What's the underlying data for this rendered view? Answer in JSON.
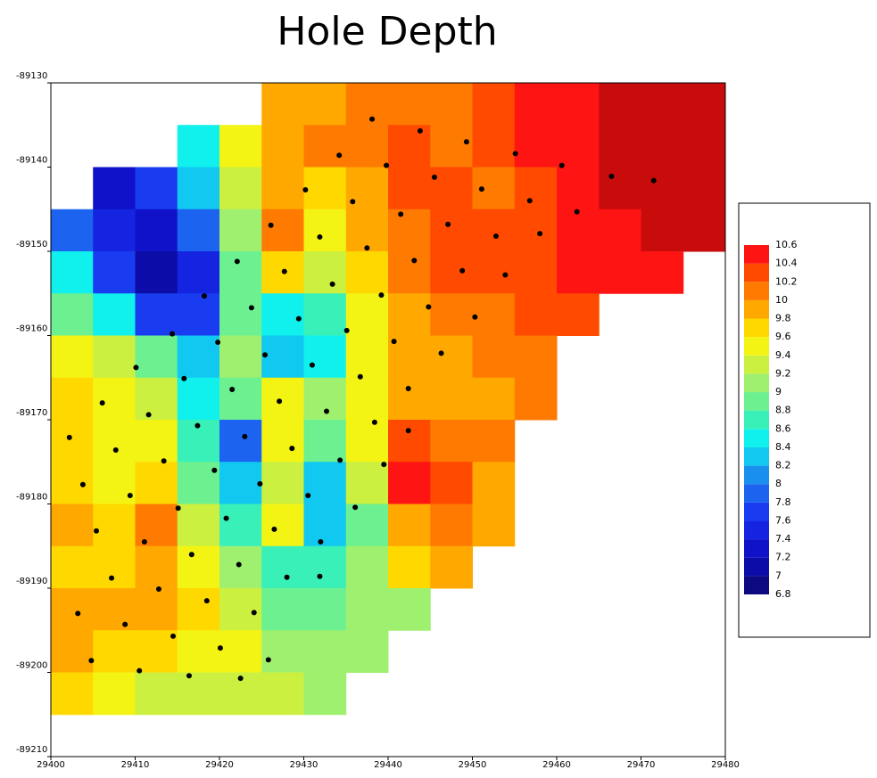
{
  "chart_data": {
    "type": "contour",
    "title": "Hole Depth",
    "xlim": [
      29400,
      29480
    ],
    "ylim": [
      -89210,
      -89130
    ],
    "xticks": [
      29400,
      29410,
      29420,
      29430,
      29440,
      29450,
      29460,
      29470,
      29480
    ],
    "yticks": [
      -89130,
      -89140,
      -89150,
      -89160,
      -89170,
      -89180,
      -89190,
      -89200,
      -89210
    ],
    "x": [
      29402.5,
      29407.5,
      29412.5,
      29417.5,
      29422.5,
      29427.5,
      29432.5,
      29437.5,
      29442.5,
      29447.5,
      29452.5,
      29457.5,
      29462.5,
      29467.5,
      29472.5,
      29477.5
    ],
    "y": [
      -89132.5,
      -89137.5,
      -89142.5,
      -89147.5,
      -89152.5,
      -89157.5,
      -89162.5,
      -89167.5,
      -89172.5,
      -89177.5,
      -89182.5,
      -89187.5,
      -89192.5,
      -89197.5,
      -89202.5
    ],
    "z": [
      [
        null,
        null,
        null,
        null,
        null,
        9.8,
        9.9,
        10,
        10,
        10.1,
        10.2,
        10.4,
        10.4,
        10.6,
        10.6,
        10.6
      ],
      [
        null,
        null,
        null,
        8.4,
        9.4,
        9.8,
        10,
        10,
        10.2,
        10.1,
        10.2,
        10.4,
        10.5,
        10.6,
        10.6,
        10.6
      ],
      [
        null,
        7.2,
        7.6,
        8.2,
        9.2,
        9.8,
        9.6,
        9.9,
        10.2,
        10.2,
        10.1,
        10.3,
        10.4,
        10.6,
        10.6,
        10.6
      ],
      [
        7.8,
        7.4,
        7.2,
        7.8,
        9,
        10,
        9.4,
        9.8,
        10,
        10.2,
        10.2,
        10.3,
        10.4,
        10.5,
        10.6,
        10.6
      ],
      [
        8.4,
        7.6,
        7,
        7.4,
        8.8,
        9.6,
        9.2,
        9.6,
        10,
        10.3,
        10.2,
        10.2,
        10.4,
        10.4,
        10.4,
        null
      ],
      [
        8.8,
        8.4,
        7.6,
        7.6,
        8.8,
        8.4,
        8.6,
        9.4,
        9.9,
        10,
        10.1,
        10.2,
        10.3,
        null,
        null,
        null
      ],
      [
        9.4,
        9.2,
        8.8,
        8.2,
        9,
        8.2,
        8.4,
        9.4,
        9.8,
        9.9,
        10,
        10.1,
        null,
        null,
        null,
        null
      ],
      [
        9.6,
        9.4,
        9.2,
        8.4,
        8.8,
        9.4,
        9,
        9.4,
        9.8,
        9.9,
        9.9,
        10,
        null,
        null,
        null,
        null
      ],
      [
        9.6,
        9.4,
        9.4,
        8.6,
        7.8,
        9.4,
        8.8,
        9.4,
        10.2,
        10.1,
        10,
        null,
        null,
        null,
        null,
        null
      ],
      [
        9.6,
        9.4,
        9.6,
        8.8,
        8.2,
        9.2,
        8.2,
        9.2,
        10.4,
        10.2,
        9.9,
        null,
        null,
        null,
        null,
        null
      ],
      [
        9.8,
        9.6,
        10,
        9.2,
        8.6,
        9.4,
        8.2,
        8.8,
        9.8,
        10,
        9.9,
        null,
        null,
        null,
        null,
        null
      ],
      [
        9.6,
        9.6,
        9.8,
        9.4,
        9,
        8.6,
        8.6,
        9,
        9.6,
        9.8,
        null,
        null,
        null,
        null,
        null,
        null
      ],
      [
        9.8,
        9.8,
        9.8,
        9.6,
        9.2,
        8.8,
        8.8,
        9,
        9,
        null,
        null,
        null,
        null,
        null,
        null,
        null
      ],
      [
        9.8,
        9.6,
        9.6,
        9.4,
        9.4,
        9,
        9,
        9,
        null,
        null,
        null,
        null,
        null,
        null,
        null,
        null
      ],
      [
        9.6,
        9.4,
        9.2,
        9.2,
        9.2,
        9.2,
        9,
        null,
        null,
        null,
        null,
        null,
        null,
        null,
        null,
        null
      ]
    ],
    "holes": {
      "x": [
        29438.1,
        29443.8,
        29449.3,
        29455.1,
        29460.6,
        29466.5,
        29471.5,
        29434.2,
        29439.8,
        29445.5,
        29451.1,
        29456.8,
        29462.4,
        29430.2,
        29435.8,
        29441.5,
        29447.1,
        29452.8,
        29458.0,
        29426.1,
        29431.9,
        29437.5,
        29443.1,
        29448.8,
        29453.9,
        29422.1,
        29427.7,
        29433.4,
        29439.2,
        29444.8,
        29450.3,
        29418.2,
        29423.8,
        29429.4,
        29435.1,
        29440.7,
        29446.3,
        29414.4,
        29419.8,
        29425.4,
        29431.0,
        29436.7,
        29442.4,
        29410.1,
        29415.8,
        29421.5,
        29427.1,
        29432.7,
        29438.4,
        29442.4,
        29406.1,
        29411.6,
        29417.4,
        29423.0,
        29428.6,
        29434.3,
        29439.5,
        29402.2,
        29407.7,
        29413.4,
        29419.4,
        29424.8,
        29430.5,
        29436.1,
        29403.8,
        29409.4,
        29415.1,
        29420.8,
        29426.5,
        29432.0,
        29405.4,
        29411.1,
        29416.7,
        29422.3,
        29428.0,
        29431.9,
        29407.2,
        29412.8,
        29418.5,
        29424.1,
        29403.2,
        29408.8,
        29414.5,
        29420.1,
        29425.8,
        29404.8,
        29410.5,
        29416.4,
        29422.5
      ],
      "y": [
        -89134.3,
        -89135.7,
        -89137.0,
        -89138.4,
        -89139.8,
        -89141.1,
        -89141.6,
        -89138.6,
        -89139.8,
        -89141.2,
        -89142.6,
        -89144.0,
        -89145.3,
        -89142.7,
        -89144.1,
        -89145.6,
        -89146.8,
        -89148.2,
        -89147.9,
        -89146.9,
        -89148.3,
        -89149.6,
        -89151.1,
        -89152.3,
        -89152.8,
        -89151.2,
        -89152.4,
        -89153.9,
        -89155.2,
        -89156.6,
        -89157.8,
        -89155.3,
        -89156.7,
        -89158.0,
        -89159.4,
        -89160.7,
        -89162.1,
        -89159.8,
        -89160.8,
        -89162.3,
        -89163.5,
        -89164.9,
        -89166.3,
        -89163.8,
        -89165.1,
        -89166.4,
        -89167.8,
        -89169.0,
        -89170.3,
        -89171.3,
        -89168.0,
        -89169.4,
        -89170.7,
        -89172.0,
        -89173.4,
        -89174.8,
        -89175.3,
        -89172.1,
        -89173.6,
        -89174.9,
        -89176.0,
        -89177.6,
        -89179.0,
        -89180.4,
        -89177.7,
        -89179.0,
        -89180.5,
        -89181.7,
        -89183.0,
        -89184.5,
        -89183.2,
        -89184.5,
        -89186.0,
        -89187.2,
        -89188.7,
        -89188.6,
        -89188.8,
        -89190.1,
        -89191.5,
        -89192.9,
        -89193.0,
        -89194.3,
        -89195.7,
        -89197.1,
        -89198.5,
        -89198.6,
        -89199.8,
        -89200.4,
        -89200.7
      ]
    },
    "colorbar": {
      "levels": [
        6.8,
        7,
        7.2,
        7.4,
        7.6,
        7.8,
        8,
        8.2,
        8.4,
        8.6,
        8.8,
        9,
        9.2,
        9.4,
        9.6,
        9.8,
        10,
        10.2,
        10.4,
        10.6
      ],
      "colors": [
        "#0c0a7e",
        "#0c0ca8",
        "#0f12c8",
        "#1424e0",
        "#1a3cf0",
        "#1c64f0",
        "#1a90ee",
        "#10c8f0",
        "#10f0ec",
        "#38f0b8",
        "#6cf090",
        "#a0f070",
        "#ccf040",
        "#f4f414",
        "#ffd800",
        "#ffa800",
        "#ff7a00",
        "#ff4a00",
        "#ff1414",
        "#c80c0c"
      ]
    }
  }
}
